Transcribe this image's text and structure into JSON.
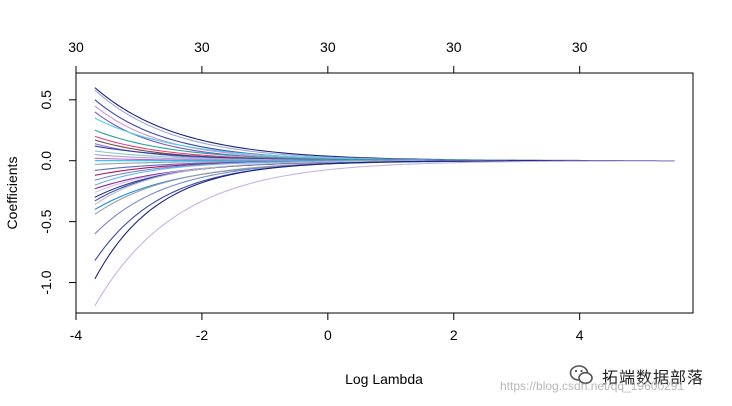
{
  "chart_data": {
    "type": "line",
    "title": "",
    "xlabel": "Log Lambda",
    "ylabel": "Coefficients",
    "xlim": [
      -4.0,
      5.8
    ],
    "ylim": [
      -1.25,
      0.72
    ],
    "x_ticks": [
      {
        "value": -4,
        "label": "-4"
      },
      {
        "value": -2,
        "label": "-2"
      },
      {
        "value": 0,
        "label": "0"
      },
      {
        "value": 2,
        "label": "2"
      },
      {
        "value": 4,
        "label": "4"
      }
    ],
    "y_ticks": [
      {
        "value": 0.5,
        "label": "0.5"
      },
      {
        "value": 0.0,
        "label": "0.0"
      },
      {
        "value": -0.5,
        "label": "-0.5"
      },
      {
        "value": -1.0,
        "label": "-1.0"
      }
    ],
    "top_ticks": [
      {
        "value": -4,
        "label": "30"
      },
      {
        "value": -2,
        "label": "30"
      },
      {
        "value": 0,
        "label": "30"
      },
      {
        "value": 2,
        "label": "30"
      },
      {
        "value": 4,
        "label": "30"
      }
    ],
    "x_start": -3.7,
    "x_end": 5.5,
    "grid": false,
    "legend": "none",
    "series_start_values": [
      0.6,
      0.58,
      0.5,
      0.45,
      0.4,
      0.35,
      0.25,
      0.2,
      0.17,
      0.14,
      0.12,
      0.08,
      0.05,
      0.02,
      0.0,
      -0.03,
      -0.08,
      -0.12,
      -0.16,
      -0.2,
      -0.23,
      -0.26,
      -0.3,
      -0.33,
      -0.36,
      -0.4,
      -0.44,
      -0.6,
      -0.82,
      -0.97,
      -1.19
    ],
    "series_colors": [
      "#1a237e",
      "#9fa8da",
      "#3949ab",
      "#ce93d8",
      "#7e57c2",
      "#4dd0e1",
      "#26a69a",
      "#ec407a",
      "#6d4c41",
      "#9575cd",
      "#303f9f",
      "#80cbc4",
      "#b39ddb",
      "#ba68c8",
      "#29b6f6",
      "#90a4ae",
      "#5c6bc0",
      "#ad1457",
      "#7986cb",
      "#64b5f6",
      "#8e24aa",
      "#c5cae9",
      "#283593",
      "#3f51b5",
      "#bdbdbd",
      "#1e88e5",
      "#9e9e9e",
      "#7986cb",
      "#3949ab",
      "#1a237e",
      "#c5b3e6"
    ]
  },
  "watermark": {
    "brand": "拓端数据部落",
    "url": "https://blog.csdn.net/qq_19600291"
  }
}
